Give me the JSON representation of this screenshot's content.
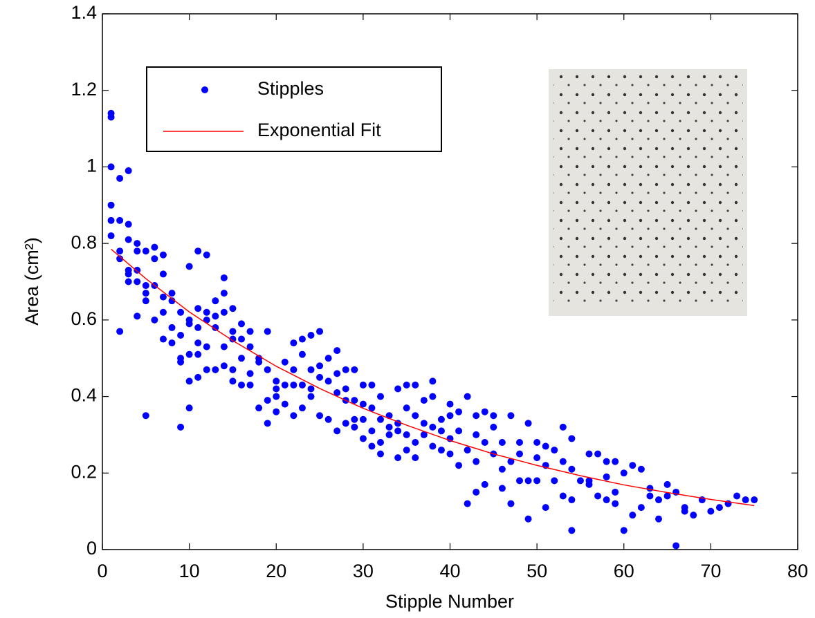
{
  "chart_data": {
    "type": "scatter",
    "x_label": "Stipple Number",
    "y_label": "Area (cm²)",
    "xlim": [
      0,
      80
    ],
    "xticks": [
      0,
      10,
      20,
      30,
      40,
      50,
      60,
      70,
      80
    ],
    "ylim": [
      0,
      1.4
    ],
    "yticks": [
      0,
      0.2,
      0.4,
      0.6,
      0.8,
      1,
      1.2,
      1.4
    ],
    "legend": "upper left",
    "series": [
      {
        "name": "Stipples",
        "color": "#0000ff",
        "style": "markers",
        "x": [
          1,
          1,
          1,
          1,
          1,
          1,
          2,
          2,
          2,
          2,
          2,
          3,
          3,
          3,
          3,
          3,
          3,
          4,
          4,
          4,
          4,
          4,
          5,
          5,
          5,
          5,
          5,
          6,
          6,
          6,
          6,
          7,
          7,
          7,
          7,
          7,
          8,
          8,
          8,
          8,
          9,
          9,
          9,
          9,
          9,
          10,
          10,
          10,
          10,
          10,
          10,
          11,
          11,
          11,
          11,
          11,
          11,
          12,
          12,
          12,
          12,
          12,
          13,
          13,
          13,
          13,
          14,
          14,
          14,
          14,
          14,
          15,
          15,
          15,
          15,
          15,
          16,
          16,
          16,
          16,
          17,
          17,
          17,
          17,
          18,
          18,
          18,
          19,
          19,
          19,
          19,
          20,
          20,
          20,
          20,
          21,
          21,
          21,
          22,
          22,
          22,
          22,
          23,
          23,
          23,
          23,
          24,
          24,
          24,
          24,
          25,
          25,
          25,
          25,
          26,
          26,
          26,
          27,
          27,
          27,
          27,
          28,
          28,
          28,
          28,
          29,
          29,
          29,
          29,
          30,
          30,
          30,
          30,
          31,
          31,
          31,
          31,
          32,
          32,
          32,
          32,
          33,
          33,
          33,
          34,
          34,
          34,
          34,
          35,
          35,
          35,
          35,
          36,
          36,
          36,
          36,
          37,
          37,
          37,
          38,
          38,
          38,
          38,
          39,
          39,
          39,
          40,
          40,
          40,
          40,
          41,
          41,
          41,
          42,
          42,
          42,
          43,
          43,
          43,
          43,
          44,
          44,
          44,
          45,
          45,
          45,
          46,
          46,
          46,
          47,
          47,
          47,
          48,
          48,
          48,
          49,
          49,
          49,
          50,
          50,
          50,
          51,
          51,
          51,
          52,
          52,
          53,
          53,
          53,
          54,
          54,
          54,
          54,
          55,
          56,
          56,
          56,
          57,
          57,
          58,
          58,
          58,
          59,
          59,
          59,
          60,
          60,
          61,
          61,
          62,
          62,
          63,
          63,
          64,
          64,
          65,
          65,
          66,
          66,
          67,
          67,
          68,
          69,
          70,
          71,
          72,
          73,
          74,
          75
        ],
        "values": [
          1.14,
          1.13,
          1.0,
          0.9,
          0.86,
          0.82,
          0.97,
          0.86,
          0.78,
          0.76,
          0.57,
          0.99,
          0.85,
          0.81,
          0.73,
          0.72,
          0.7,
          0.8,
          0.78,
          0.73,
          0.7,
          0.61,
          0.78,
          0.69,
          0.67,
          0.65,
          0.35,
          0.79,
          0.76,
          0.69,
          0.6,
          0.77,
          0.72,
          0.66,
          0.62,
          0.55,
          0.67,
          0.65,
          0.58,
          0.54,
          0.62,
          0.56,
          0.5,
          0.49,
          0.32,
          0.74,
          0.6,
          0.59,
          0.51,
          0.44,
          0.37,
          0.78,
          0.63,
          0.58,
          0.54,
          0.51,
          0.45,
          0.77,
          0.62,
          0.6,
          0.53,
          0.47,
          0.65,
          0.61,
          0.58,
          0.47,
          0.71,
          0.67,
          0.62,
          0.53,
          0.48,
          0.63,
          0.57,
          0.55,
          0.47,
          0.44,
          0.59,
          0.55,
          0.5,
          0.43,
          0.57,
          0.53,
          0.46,
          0.43,
          0.5,
          0.49,
          0.37,
          0.57,
          0.47,
          0.39,
          0.33,
          0.44,
          0.42,
          0.4,
          0.36,
          0.49,
          0.43,
          0.38,
          0.54,
          0.47,
          0.43,
          0.35,
          0.55,
          0.51,
          0.43,
          0.37,
          0.56,
          0.47,
          0.42,
          0.4,
          0.57,
          0.48,
          0.45,
          0.35,
          0.5,
          0.44,
          0.34,
          0.52,
          0.46,
          0.41,
          0.31,
          0.47,
          0.42,
          0.39,
          0.33,
          0.47,
          0.39,
          0.34,
          0.32,
          0.43,
          0.38,
          0.34,
          0.29,
          0.43,
          0.37,
          0.31,
          0.27,
          0.4,
          0.34,
          0.28,
          0.25,
          0.35,
          0.32,
          0.3,
          0.42,
          0.33,
          0.31,
          0.24,
          0.43,
          0.37,
          0.3,
          0.26,
          0.43,
          0.35,
          0.28,
          0.24,
          0.39,
          0.33,
          0.3,
          0.44,
          0.4,
          0.32,
          0.27,
          0.34,
          0.31,
          0.26,
          0.38,
          0.35,
          0.29,
          0.25,
          0.36,
          0.31,
          0.22,
          0.4,
          0.26,
          0.12,
          0.35,
          0.3,
          0.23,
          0.15,
          0.36,
          0.28,
          0.17,
          0.35,
          0.32,
          0.25,
          0.28,
          0.21,
          0.16,
          0.35,
          0.23,
          0.12,
          0.28,
          0.25,
          0.18,
          0.33,
          0.18,
          0.08,
          0.28,
          0.24,
          0.18,
          0.27,
          0.22,
          0.11,
          0.26,
          0.18,
          0.32,
          0.23,
          0.14,
          0.29,
          0.21,
          0.13,
          0.05,
          0.18,
          0.25,
          0.18,
          0.17,
          0.25,
          0.14,
          0.23,
          0.19,
          0.13,
          0.23,
          0.12,
          0.15,
          0.2,
          0.05,
          0.22,
          0.09,
          0.21,
          0.11,
          0.16,
          0.14,
          0.13,
          0.08,
          0.17,
          0.14,
          0.15,
          0.01,
          0.11,
          0.1,
          0.09,
          0.13,
          0.1,
          0.11,
          0.12,
          0.14,
          0.13,
          0.13
        ]
      },
      {
        "name": "Exponential Fit",
        "color": "#ff0000",
        "style": "line",
        "x": [
          1,
          5,
          10,
          15,
          20,
          25,
          30,
          35,
          40,
          45,
          50,
          55,
          60,
          65,
          70,
          75
        ],
        "values": [
          0.785,
          0.708,
          0.621,
          0.546,
          0.479,
          0.421,
          0.369,
          0.325,
          0.285,
          0.25,
          0.22,
          0.193,
          0.169,
          0.149,
          0.131,
          0.115
        ]
      }
    ]
  }
}
